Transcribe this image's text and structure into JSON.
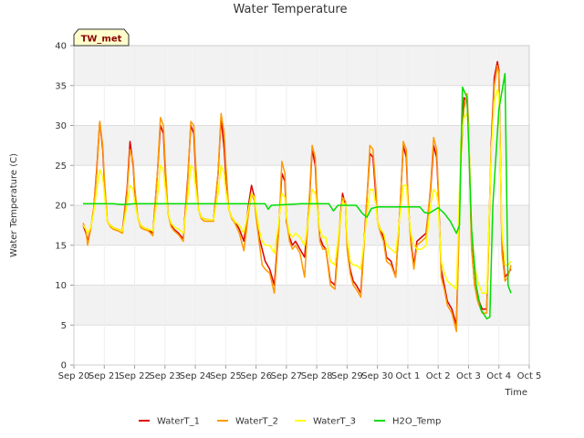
{
  "chart_data": {
    "type": "line",
    "title": "Water Temperature",
    "xlabel": "Time",
    "ylabel": "Water Temperature (C)",
    "site_label": "TW_met",
    "ylim": [
      0,
      40
    ],
    "yticks": [
      0,
      5,
      10,
      15,
      20,
      25,
      30,
      35,
      40
    ],
    "xlim": [
      "Sep 20",
      "Oct 5"
    ],
    "xticks": [
      "Sep 20",
      "Sep 21",
      "Sep 22",
      "Sep 23",
      "Sep 24",
      "Sep 25",
      "Sep 26",
      "Sep 27",
      "Sep 28",
      "Sep 29",
      "Sep 30",
      "Oct 1",
      "Oct 2",
      "Oct 3",
      "Oct 4",
      "Oct 5"
    ],
    "grid": true,
    "legend_position": "bottom",
    "series": [
      {
        "name": "WaterT_1",
        "color": "#dd0000",
        "x": [
          0.3,
          0.4,
          0.45,
          0.55,
          0.65,
          0.75,
          0.85,
          0.95,
          1.0,
          1.1,
          1.2,
          1.3,
          1.45,
          1.6,
          1.75,
          1.85,
          1.95,
          2.0,
          2.1,
          2.2,
          2.3,
          2.45,
          2.6,
          2.75,
          2.85,
          2.95,
          3.0,
          3.1,
          3.2,
          3.3,
          3.45,
          3.6,
          3.75,
          3.85,
          3.95,
          4.0,
          4.1,
          4.2,
          4.3,
          4.45,
          4.6,
          4.75,
          4.85,
          4.95,
          5.0,
          5.1,
          5.2,
          5.3,
          5.45,
          5.6,
          5.75,
          5.85,
          5.95,
          6.0,
          6.1,
          6.2,
          6.3,
          6.45,
          6.6,
          6.75,
          6.85,
          6.95,
          7.0,
          7.1,
          7.2,
          7.3,
          7.45,
          7.6,
          7.75,
          7.85,
          7.95,
          8.0,
          8.1,
          8.2,
          8.3,
          8.45,
          8.6,
          8.75,
          8.85,
          8.95,
          9.0,
          9.1,
          9.2,
          9.3,
          9.45,
          9.6,
          9.75,
          9.85,
          9.95,
          10.0,
          10.1,
          10.2,
          10.3,
          10.45,
          10.6,
          10.75,
          10.85,
          10.95,
          11.0,
          11.1,
          11.2,
          11.3,
          11.45,
          11.6,
          11.75,
          11.85,
          11.95,
          12.0,
          12.1,
          12.2,
          12.3,
          12.45,
          12.6,
          12.75,
          12.85,
          12.95,
          13.0,
          13.1,
          13.2,
          13.3,
          13.45,
          13.6,
          13.75,
          13.85,
          13.95,
          14.0,
          14.1,
          14.2,
          14.3,
          14.4
        ],
        "y": [
          17.5,
          16.5,
          15.5,
          17.0,
          19.5,
          24.5,
          30.5,
          27.0,
          23.0,
          18.0,
          17.5,
          17.2,
          17.0,
          16.8,
          22.0,
          28.0,
          25.0,
          22.0,
          18.5,
          17.5,
          17.2,
          17.0,
          16.5,
          24.0,
          30.0,
          29.0,
          25.0,
          19.0,
          17.5,
          17.0,
          16.5,
          15.8,
          23.5,
          30.0,
          29.0,
          25.0,
          19.5,
          18.5,
          18.3,
          18.2,
          18.2,
          24.0,
          31.0,
          27.0,
          24.0,
          19.5,
          18.5,
          18.0,
          17.0,
          15.5,
          20.0,
          22.5,
          21.0,
          19.0,
          16.0,
          14.5,
          13.0,
          12.0,
          10.0,
          17.5,
          24.0,
          23.0,
          18.0,
          16.0,
          15.0,
          15.5,
          14.5,
          13.5,
          20.0,
          27.0,
          25.0,
          21.0,
          16.0,
          15.0,
          14.5,
          10.5,
          10.0,
          17.5,
          21.5,
          20.0,
          15.0,
          12.0,
          10.5,
          10.0,
          9.0,
          18.0,
          26.5,
          26.0,
          21.0,
          18.0,
          17.0,
          16.0,
          13.5,
          13.0,
          11.0,
          20.0,
          27.5,
          26.0,
          21.0,
          15.5,
          12.5,
          15.5,
          16.0,
          16.5,
          22.0,
          27.5,
          26.0,
          22.0,
          12.0,
          10.0,
          8.0,
          7.0,
          5.0,
          27.0,
          33.5,
          33.0,
          30.0,
          15.0,
          10.0,
          8.5,
          7.0,
          7.0,
          28.0,
          36.0,
          38.0,
          37.0,
          15.0,
          11.0,
          11.5,
          12.0
        ]
      },
      {
        "name": "WaterT_2",
        "color": "#ff9900",
        "x": [
          0.3,
          0.4,
          0.45,
          0.55,
          0.65,
          0.75,
          0.85,
          0.95,
          1.0,
          1.1,
          1.2,
          1.3,
          1.45,
          1.6,
          1.75,
          1.85,
          1.95,
          2.0,
          2.1,
          2.2,
          2.3,
          2.45,
          2.6,
          2.75,
          2.85,
          2.95,
          3.0,
          3.1,
          3.2,
          3.3,
          3.45,
          3.6,
          3.75,
          3.85,
          3.95,
          4.0,
          4.1,
          4.2,
          4.3,
          4.45,
          4.6,
          4.75,
          4.85,
          4.95,
          5.0,
          5.1,
          5.2,
          5.3,
          5.45,
          5.6,
          5.75,
          5.85,
          5.95,
          6.0,
          6.1,
          6.2,
          6.3,
          6.45,
          6.6,
          6.75,
          6.85,
          6.95,
          7.0,
          7.1,
          7.2,
          7.3,
          7.45,
          7.6,
          7.75,
          7.85,
          7.95,
          8.0,
          8.1,
          8.2,
          8.3,
          8.45,
          8.6,
          8.75,
          8.85,
          8.95,
          9.0,
          9.1,
          9.2,
          9.3,
          9.45,
          9.6,
          9.75,
          9.85,
          9.95,
          10.0,
          10.1,
          10.2,
          10.3,
          10.45,
          10.6,
          10.75,
          10.85,
          10.95,
          11.0,
          11.1,
          11.2,
          11.3,
          11.45,
          11.6,
          11.75,
          11.85,
          11.95,
          12.0,
          12.1,
          12.2,
          12.3,
          12.45,
          12.6,
          12.75,
          12.85,
          12.95,
          13.0,
          13.1,
          13.2,
          13.3,
          13.45,
          13.6,
          13.75,
          13.85,
          13.95,
          14.0,
          14.1,
          14.2,
          14.3,
          14.4
        ],
        "y": [
          17.8,
          16.8,
          15.0,
          17.0,
          19.5,
          24.0,
          30.5,
          27.5,
          23.5,
          18.0,
          17.3,
          17.0,
          16.8,
          16.5,
          21.5,
          27.0,
          25.5,
          22.5,
          18.5,
          17.2,
          17.0,
          16.8,
          16.2,
          24.0,
          31.0,
          30.0,
          26.0,
          19.0,
          17.3,
          16.8,
          16.3,
          15.5,
          23.0,
          30.5,
          30.0,
          26.0,
          19.5,
          18.3,
          18.0,
          18.0,
          18.0,
          24.0,
          31.5,
          29.0,
          25.5,
          19.5,
          18.3,
          17.8,
          16.5,
          14.3,
          19.0,
          21.5,
          20.5,
          18.5,
          15.5,
          12.5,
          12.0,
          11.5,
          9.0,
          17.0,
          25.5,
          24.0,
          18.5,
          15.5,
          14.5,
          15.0,
          14.0,
          11.0,
          20.5,
          27.5,
          26.0,
          21.5,
          15.5,
          14.5,
          14.5,
          10.0,
          9.5,
          17.0,
          21.0,
          20.5,
          14.5,
          11.5,
          10.0,
          9.5,
          8.5,
          17.5,
          27.5,
          27.0,
          22.0,
          18.0,
          16.5,
          15.5,
          13.0,
          12.5,
          11.0,
          20.0,
          28.0,
          27.0,
          21.5,
          15.0,
          12.0,
          15.0,
          15.5,
          16.0,
          22.5,
          28.5,
          27.0,
          22.5,
          11.0,
          9.5,
          7.5,
          6.5,
          4.2,
          26.0,
          32.0,
          34.0,
          30.0,
          14.5,
          10.0,
          8.0,
          6.5,
          6.5,
          27.0,
          35.0,
          37.5,
          36.5,
          14.0,
          10.5,
          11.0,
          12.5
        ]
      },
      {
        "name": "WaterT_3",
        "color": "#ffff00",
        "x": [
          0.3,
          0.4,
          0.45,
          0.55,
          0.65,
          0.75,
          0.85,
          0.95,
          1.0,
          1.1,
          1.2,
          1.3,
          1.45,
          1.6,
          1.75,
          1.85,
          1.95,
          2.0,
          2.1,
          2.2,
          2.3,
          2.45,
          2.6,
          2.75,
          2.85,
          2.95,
          3.0,
          3.1,
          3.2,
          3.3,
          3.45,
          3.6,
          3.75,
          3.85,
          3.95,
          4.0,
          4.1,
          4.2,
          4.3,
          4.45,
          4.6,
          4.75,
          4.85,
          4.95,
          5.0,
          5.1,
          5.2,
          5.3,
          5.45,
          5.6,
          5.75,
          5.85,
          5.95,
          6.0,
          6.1,
          6.2,
          6.3,
          6.45,
          6.6,
          6.75,
          6.85,
          6.95,
          7.0,
          7.1,
          7.2,
          7.3,
          7.45,
          7.6,
          7.75,
          7.85,
          7.95,
          8.0,
          8.1,
          8.2,
          8.3,
          8.45,
          8.6,
          8.75,
          8.85,
          8.95,
          9.0,
          9.1,
          9.2,
          9.3,
          9.45,
          9.6,
          9.75,
          9.85,
          9.95,
          10.0,
          10.1,
          10.2,
          10.3,
          10.45,
          10.6,
          10.75,
          10.85,
          10.95,
          11.0,
          11.1,
          11.2,
          11.3,
          11.45,
          11.6,
          11.75,
          11.85,
          11.95,
          12.0,
          12.1,
          12.2,
          12.3,
          12.45,
          12.6,
          12.75,
          12.85,
          12.95,
          13.0,
          13.1,
          13.2,
          13.3,
          13.45,
          13.6,
          13.75,
          13.85,
          13.95,
          14.0,
          14.1,
          14.2,
          14.3,
          14.4
        ],
        "y": [
          17.5,
          17.0,
          16.5,
          17.2,
          19.0,
          22.0,
          24.5,
          23.5,
          21.5,
          18.0,
          17.5,
          17.2,
          17.0,
          16.8,
          20.0,
          22.5,
          22.0,
          20.5,
          18.5,
          17.5,
          17.2,
          17.0,
          16.8,
          21.0,
          25.0,
          24.5,
          22.5,
          19.0,
          17.8,
          17.3,
          17.0,
          16.5,
          21.0,
          25.0,
          24.5,
          22.5,
          19.5,
          18.5,
          18.3,
          18.2,
          18.2,
          21.5,
          25.0,
          24.0,
          22.0,
          19.5,
          18.5,
          18.0,
          17.5,
          16.5,
          19.5,
          21.5,
          21.0,
          19.5,
          17.0,
          15.5,
          15.0,
          15.0,
          14.0,
          18.0,
          21.5,
          21.0,
          18.5,
          16.5,
          16.0,
          16.5,
          16.0,
          15.0,
          19.0,
          22.0,
          21.5,
          20.0,
          17.0,
          16.0,
          16.0,
          13.0,
          12.5,
          17.5,
          20.5,
          20.0,
          16.0,
          13.0,
          12.5,
          12.5,
          12.0,
          17.0,
          22.0,
          22.0,
          20.0,
          18.0,
          17.0,
          16.5,
          15.0,
          14.5,
          14.0,
          19.0,
          22.5,
          22.5,
          20.0,
          16.5,
          15.0,
          14.5,
          14.5,
          15.0,
          20.0,
          22.0,
          21.5,
          20.0,
          13.0,
          11.5,
          10.5,
          10.0,
          9.5,
          28.0,
          31.0,
          31.5,
          30.0,
          17.0,
          12.5,
          10.5,
          9.0,
          9.0,
          27.0,
          33.0,
          34.5,
          34.0,
          17.0,
          12.5,
          12.5,
          13.0
        ]
      },
      {
        "name": "H2O_Temp",
        "color": "#00dd00",
        "x": [
          0.3,
          1.0,
          1.3,
          1.6,
          2.0,
          3.0,
          4.0,
          5.0,
          5.5,
          6.0,
          6.3,
          6.4,
          6.5,
          7.0,
          7.5,
          8.0,
          8.4,
          8.55,
          8.7,
          9.0,
          9.3,
          9.5,
          9.65,
          9.8,
          10.0,
          10.5,
          11.0,
          11.4,
          11.55,
          11.7,
          12.0,
          12.2,
          12.4,
          12.6,
          12.7,
          12.8,
          12.95,
          13.0,
          13.1,
          13.25,
          13.4,
          13.6,
          13.7,
          13.8,
          14.0,
          14.2,
          14.3,
          14.4
        ],
        "y": [
          20.2,
          20.2,
          20.2,
          20.1,
          20.2,
          20.2,
          20.2,
          20.2,
          20.2,
          20.2,
          20.2,
          19.5,
          20.0,
          20.1,
          20.2,
          20.2,
          20.2,
          19.3,
          20.0,
          20.0,
          20.0,
          19.0,
          18.5,
          19.6,
          19.8,
          19.8,
          19.8,
          19.8,
          19.1,
          19.0,
          19.7,
          19.0,
          18.0,
          16.5,
          17.5,
          34.8,
          33.5,
          28.0,
          17.0,
          10.0,
          7.0,
          5.8,
          6.0,
          20.0,
          32.0,
          36.5,
          10.0,
          9.0
        ]
      }
    ]
  }
}
